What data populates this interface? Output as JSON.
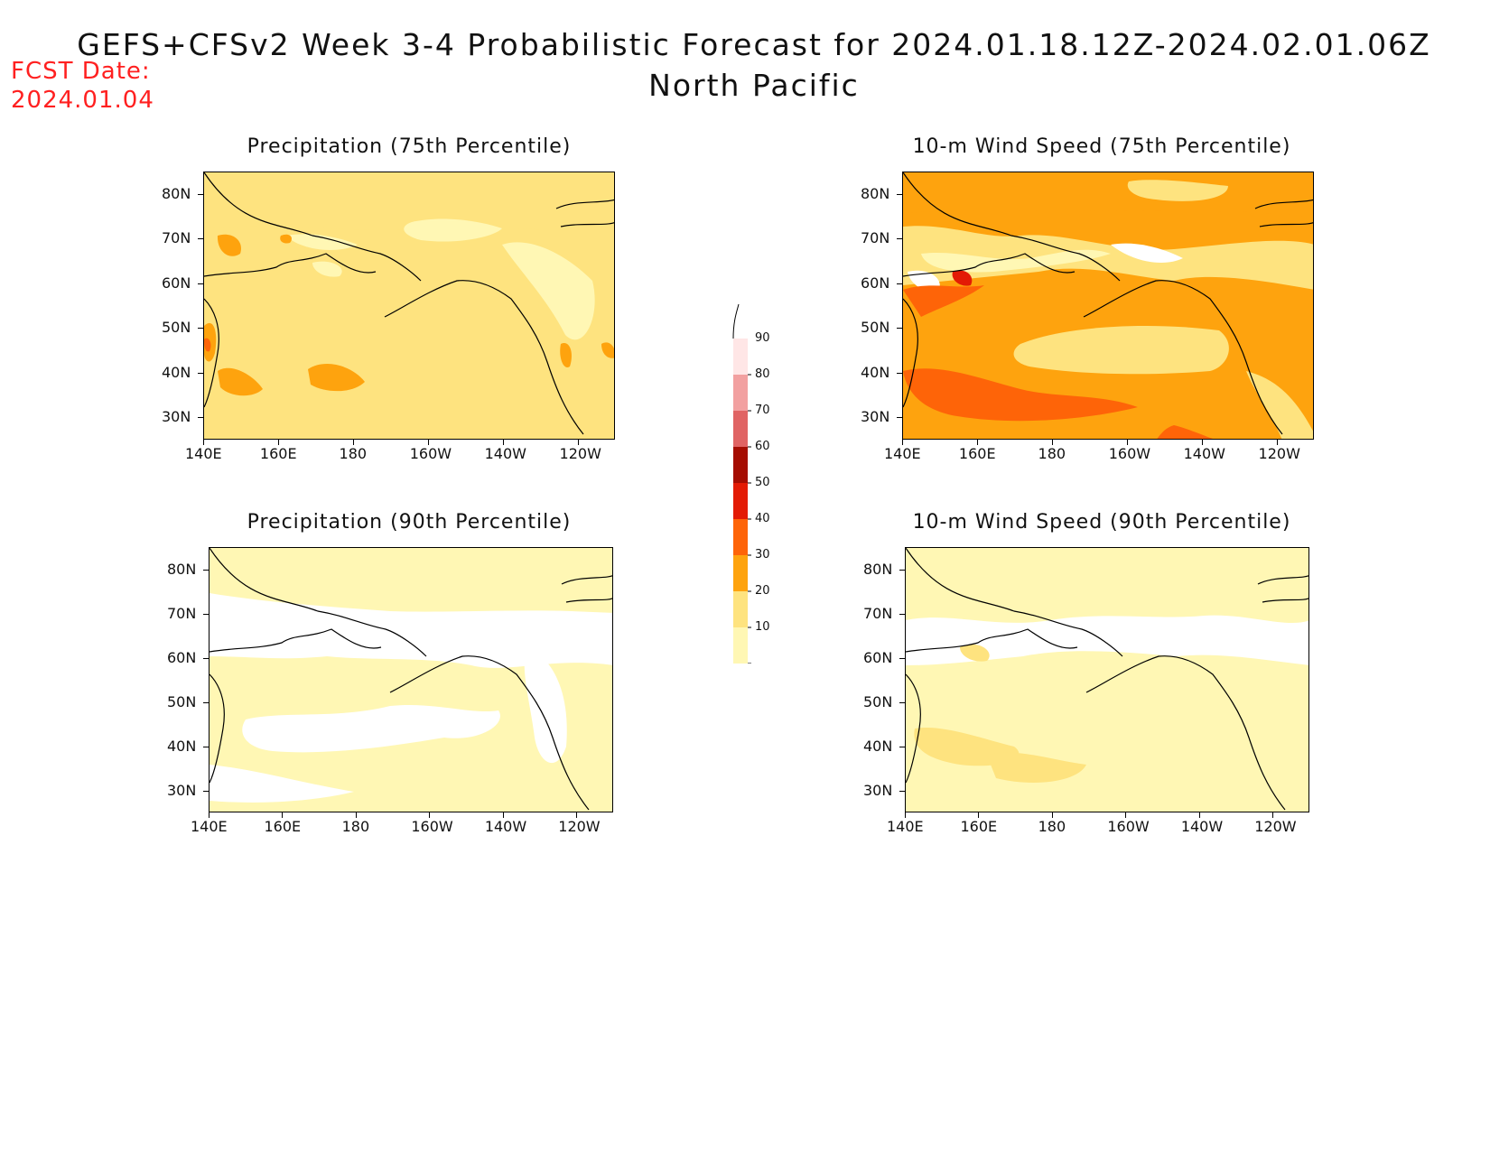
{
  "header": {
    "title": "GEFS+CFSv2 Week 3-4 Probabilistic Forecast for 2024.01.18.12Z-2024.02.01.06Z",
    "region": "North Pacific",
    "fcst_label": "FCST Date:",
    "fcst_date": "2024.01.04"
  },
  "axes": {
    "lat_labels": [
      "80N",
      "70N",
      "60N",
      "50N",
      "40N",
      "30N"
    ],
    "lon_labels": [
      "140E",
      "160E",
      "180",
      "160W",
      "140W",
      "120W"
    ]
  },
  "panels": [
    {
      "title": "Precipitation (75th Percentile)"
    },
    {
      "title": "10-m Wind Speed (75th Percentile)"
    },
    {
      "title": "Precipitation (90th Percentile)"
    },
    {
      "title": "10-m Wind Speed (90th Percentile)"
    }
  ],
  "colorbar": {
    "levels": [
      "10",
      "20",
      "30",
      "40",
      "50",
      "60",
      "70",
      "80",
      "90"
    ],
    "colors": [
      "#fff7b4",
      "#fee37f",
      "#fea30e",
      "#fe6408",
      "#e31b05",
      "#a50d02",
      "#e06464",
      "#f2a0a0",
      "#ffe6e6"
    ]
  },
  "colors": {
    "white": "#ffffff",
    "light_yellow": "#fff7b4",
    "yellow": "#fee37f",
    "orange": "#fea30e",
    "dark_orange": "#fe6408",
    "red": "#e31b05",
    "fcst_red": "#ff2020"
  }
}
